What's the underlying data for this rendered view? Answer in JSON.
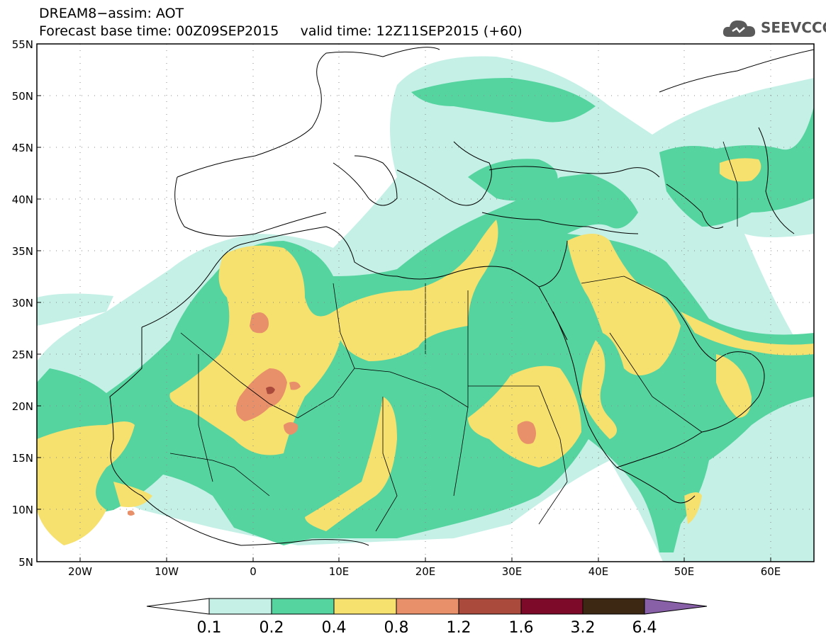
{
  "title": {
    "line1": "DREAM8−assim: AOT",
    "line2": "Forecast base time: 00Z09SEP2015     valid time: 12Z11SEP2015 (+60)"
  },
  "logo": {
    "text": "SEEVCCC",
    "icon": "cloud-icon"
  },
  "map": {
    "lat_labels": [
      "55N",
      "50N",
      "45N",
      "40N",
      "35N",
      "30N",
      "25N",
      "20N",
      "15N",
      "10N",
      "5N"
    ],
    "lon_labels": [
      "20W",
      "10W",
      "0",
      "10E",
      "20E",
      "30E",
      "40E",
      "50E",
      "60E"
    ]
  },
  "colorbar": {
    "labels": [
      "0.1",
      "0.2",
      "0.4",
      "0.8",
      "1.2",
      "1.6",
      "3.2",
      "6.4"
    ],
    "colors": [
      "#ffffff",
      "#c5f0e6",
      "#55d4a0",
      "#f6e06e",
      "#e8906a",
      "#a94a3c",
      "#7e0a2a",
      "#3d2814",
      "#8860a8"
    ]
  }
}
